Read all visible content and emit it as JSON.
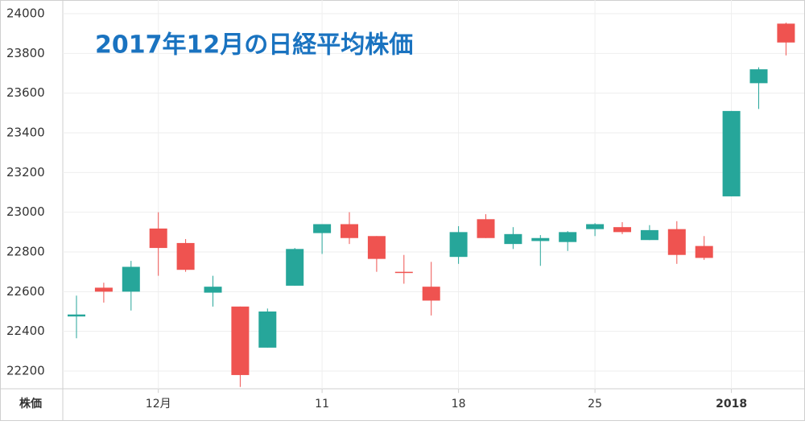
{
  "chart_data": {
    "type": "candlestick",
    "title": "2017年12月の日経平均株価",
    "categories": [
      null,
      null,
      null,
      "12月",
      null,
      null,
      null,
      null,
      null,
      "11",
      null,
      null,
      null,
      null,
      "18",
      null,
      null,
      null,
      null,
      "25",
      null,
      null,
      null,
      null,
      "2018",
      null,
      null
    ],
    "series": [
      {
        "name": "株価",
        "up_color": "#26a69a",
        "down_color": "#ef5350",
        "open": [
          22475,
          22620,
          22600,
          22918,
          22845,
          22595,
          22525,
          22318,
          22630,
          22895,
          22940,
          22880,
          22700,
          22625,
          22775,
          22965,
          22840,
          22855,
          22850,
          22915,
          22925,
          22860,
          22915,
          22830,
          23080,
          23650,
          23950
        ],
        "high": [
          22580,
          22645,
          22755,
          23000,
          22865,
          22680,
          22525,
          22515,
          22820,
          22940,
          23000,
          22880,
          22785,
          22750,
          22930,
          22990,
          22925,
          22885,
          22905,
          22945,
          22950,
          22935,
          22955,
          22880,
          23510,
          23730,
          23955
        ],
        "low": [
          22365,
          22545,
          22505,
          22680,
          22700,
          22525,
          22120,
          22318,
          22630,
          22790,
          22840,
          22700,
          22640,
          22480,
          22740,
          22870,
          22815,
          22730,
          22805,
          22880,
          22890,
          22860,
          22740,
          22760,
          23080,
          23520,
          23790
        ],
        "close": [
          22485,
          22600,
          22725,
          22820,
          22710,
          22625,
          22180,
          22500,
          22815,
          22940,
          22870,
          22765,
          22695,
          22555,
          22900,
          22870,
          22890,
          22870,
          22900,
          22940,
          22900,
          22910,
          22785,
          22770,
          23510,
          23720,
          23855
        ]
      }
    ],
    "ylim": [
      22110,
      24050
    ],
    "yticks": [
      22200,
      22400,
      22600,
      22800,
      23000,
      23200,
      23400,
      23600,
      23800,
      24000
    ],
    "grid": true
  }
}
